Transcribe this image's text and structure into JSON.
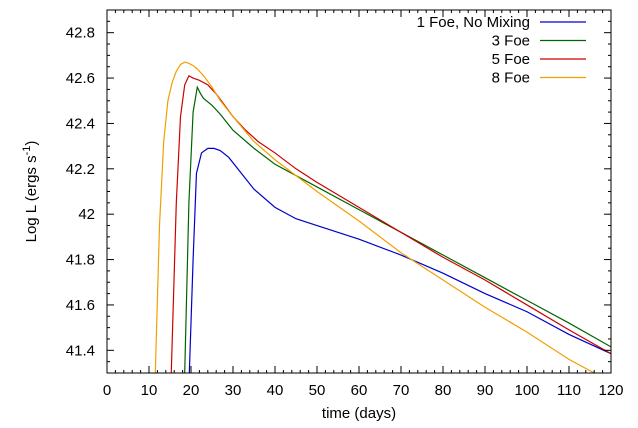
{
  "chart_data": {
    "type": "line",
    "xlabel": "time (days)",
    "ylabel": "Log L (ergs s",
    "ylabel_sup": "-1",
    "ylabel_close": ")",
    "xlim": [
      0,
      120
    ],
    "ylim": [
      41.3,
      42.9
    ],
    "xticks": [
      0,
      10,
      20,
      30,
      40,
      50,
      60,
      70,
      80,
      90,
      100,
      110,
      120
    ],
    "xtick_labels": [
      "0",
      "10",
      "20",
      "30",
      "40",
      "50",
      "60",
      "70",
      "80",
      "90",
      "100",
      "110",
      "120"
    ],
    "yticks": [
      41.4,
      41.6,
      41.8,
      42.0,
      42.2,
      42.4,
      42.6,
      42.8
    ],
    "ytick_labels": [
      "41.4",
      "41.6",
      "41.8",
      "42",
      "42.2",
      "42.4",
      "42.6",
      "42.8"
    ],
    "grid": false,
    "legend_position": "top-right",
    "series": [
      {
        "name": "1 Foe, No Mixing",
        "color": "#0000cc",
        "x": [
          19.6,
          20.5,
          21.3,
          22.5,
          24.0,
          25.5,
          27.0,
          29.0,
          32.0,
          35.0,
          40.0,
          45.0,
          50.0,
          60.0,
          70.0,
          80.0,
          90.0,
          100.0,
          110.0,
          120.0
        ],
        "y": [
          41.3,
          41.8,
          42.18,
          42.27,
          42.29,
          42.29,
          42.28,
          42.25,
          42.18,
          42.11,
          42.03,
          41.98,
          41.95,
          41.89,
          41.82,
          41.74,
          41.65,
          41.57,
          41.47,
          41.385
        ]
      },
      {
        "name": "3 Foe",
        "color": "#006400",
        "x": [
          18.5,
          19.5,
          20.5,
          21.5,
          22.3,
          23.0,
          25.0,
          27.0,
          30.0,
          35.0,
          40.0,
          50.0,
          60.0,
          70.0,
          80.0,
          90.0,
          100.0,
          110.0,
          120.0
        ],
        "y": [
          41.3,
          42.05,
          42.45,
          42.56,
          42.53,
          42.51,
          42.48,
          42.44,
          42.37,
          42.29,
          42.22,
          42.12,
          42.02,
          41.92,
          41.82,
          41.72,
          41.62,
          41.52,
          41.415
        ]
      },
      {
        "name": "5 Foe",
        "color": "#cc0000",
        "x": [
          15.3,
          16.5,
          17.5,
          18.5,
          19.5,
          20.5,
          22.0,
          24.0,
          26.0,
          28.0,
          30.0,
          33.0,
          36.0,
          40.0,
          45.0,
          50.0,
          60.0,
          70.0,
          80.0,
          90.0,
          100.0,
          110.0,
          120.0
        ],
        "y": [
          41.3,
          42.05,
          42.43,
          42.57,
          42.61,
          42.6,
          42.59,
          42.57,
          42.53,
          42.48,
          42.43,
          42.37,
          42.32,
          42.27,
          42.2,
          42.14,
          42.03,
          41.92,
          41.81,
          41.71,
          41.6,
          41.49,
          41.385
        ]
      },
      {
        "name": "8 Foe",
        "color": "#f0a000",
        "x": [
          11.5,
          12.5,
          13.5,
          14.5,
          15.5,
          16.5,
          17.5,
          18.5,
          19.5,
          20.5,
          21.5,
          23.0,
          25.0,
          27.0,
          30.0,
          35.0,
          40.0,
          50.0,
          60.0,
          70.0,
          80.0,
          90.0,
          100.0,
          110.0,
          116.0
        ],
        "y": [
          41.3,
          41.95,
          42.32,
          42.5,
          42.58,
          42.63,
          42.66,
          42.67,
          42.665,
          42.655,
          42.64,
          42.61,
          42.56,
          42.5,
          42.43,
          42.32,
          42.24,
          42.1,
          41.97,
          41.83,
          41.71,
          41.59,
          41.48,
          41.36,
          41.3
        ]
      }
    ]
  }
}
